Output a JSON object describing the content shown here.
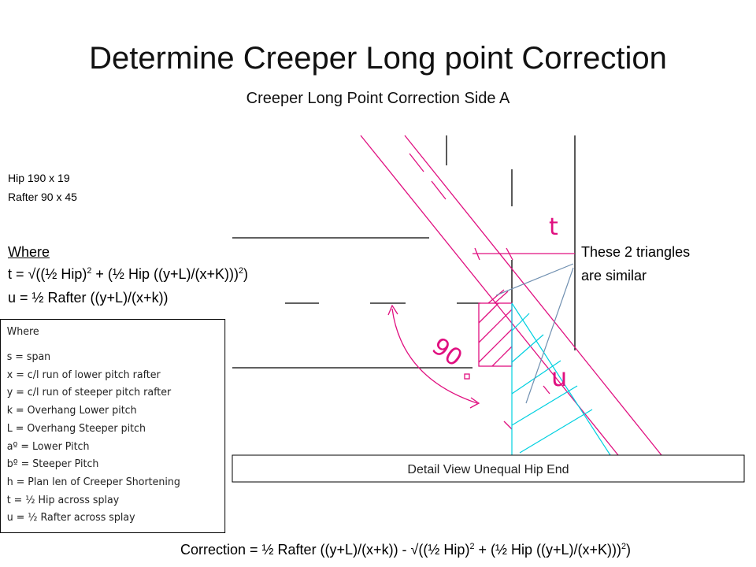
{
  "title": "Determine Creeper Long point Correction",
  "subtitle": "Creeper Long Point Correction Side A",
  "sizes": [
    "Hip 190 x 19",
    "Rafter 90 x 45"
  ],
  "where_heading": "Where",
  "formula_t": [
    "t = √((½ Hip)",
    "2",
    " + (½ Hip ((y+L)/(x+K)))",
    "2",
    ")"
  ],
  "formula_u": "u = ½ Rafter ((y+L)/(x+k))",
  "similar_note": [
    "These 2 triangles",
    "are similar"
  ],
  "legend_box": {
    "heading": "Where",
    "items": [
      "s = span",
      "x = c/l run of lower pitch rafter",
      "y = c/l run of steeper pitch rafter",
      "k = Overhang Lower pitch",
      "L = Overhang Steeper pitch",
      "aº = Lower Pitch",
      "bº = Steeper Pitch",
      "h = Plan len of Creeper Shortening",
      "t = ½ Hip across splay",
      "u = ½ Rafter across splay"
    ]
  },
  "diagram_labels": {
    "t": "t",
    "u": "u",
    "angle": "90"
  },
  "detail_caption": "Detail View Unequal Hip End",
  "correction": [
    "Correction = ½ Rafter ((y+L)/(x+k)) - √((½ Hip)",
    "2",
    " + (½ Hip ((y+L)/(x+K)))",
    "2",
    ")"
  ]
}
